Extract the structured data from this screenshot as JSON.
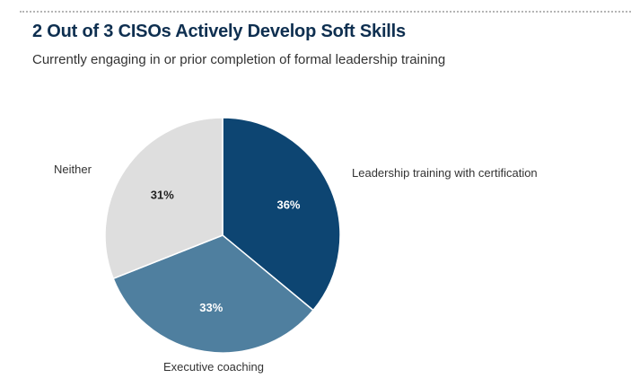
{
  "chart_data": {
    "type": "pie",
    "title": "2 Out of 3 CISOs Actively Develop Soft Skills",
    "subtitle": "Currently engaging in or prior completion of formal leadership training",
    "slices": [
      {
        "label": "Leadership training with certification",
        "value": 36,
        "display": "36%",
        "color": "#0d4572",
        "text_color": "#ffffff"
      },
      {
        "label": "Executive coaching",
        "value": 33,
        "display": "33%",
        "color": "#4f7f9f",
        "text_color": "#ffffff"
      },
      {
        "label": "Neither",
        "value": 31,
        "display": "31%",
        "color": "#dedede",
        "text_color": "#222222"
      }
    ],
    "start_angle": "top",
    "direction": "clockwise"
  }
}
